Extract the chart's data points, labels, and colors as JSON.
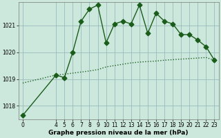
{
  "xlabel": "Graphe pression niveau de la mer (hPa)",
  "bg_color": "#cce8dd",
  "grid_color": "#99bbbb",
  "line_color": "#1a5c1a",
  "ylim": [
    1017.5,
    1021.85
  ],
  "xlim": [
    -0.5,
    23.5
  ],
  "yticks": [
    1018,
    1019,
    1020,
    1021
  ],
  "xticks": [
    0,
    4,
    5,
    6,
    7,
    8,
    9,
    10,
    11,
    12,
    13,
    14,
    15,
    16,
    17,
    18,
    19,
    20,
    21,
    22,
    23
  ],
  "jagged_x": [
    0,
    4,
    5,
    6,
    7,
    8,
    9,
    10,
    11,
    12,
    13,
    14,
    15,
    16,
    17,
    18,
    19,
    20,
    21,
    22,
    23
  ],
  "jagged_y": [
    1017.65,
    1019.15,
    1019.05,
    1020.0,
    1021.15,
    1021.6,
    1021.75,
    1020.35,
    1021.05,
    1021.15,
    1021.05,
    1021.75,
    1020.7,
    1021.45,
    1021.15,
    1021.05,
    1020.65,
    1020.65,
    1020.45,
    1020.2,
    1019.7
  ],
  "trend_x": [
    0,
    4,
    5,
    6,
    7,
    8,
    9,
    10,
    11,
    12,
    13,
    14,
    15,
    16,
    17,
    18,
    19,
    20,
    21,
    22,
    23
  ],
  "trend_y": [
    1018.85,
    1019.15,
    1019.18,
    1019.22,
    1019.26,
    1019.3,
    1019.35,
    1019.45,
    1019.5,
    1019.55,
    1019.6,
    1019.63,
    1019.65,
    1019.67,
    1019.7,
    1019.72,
    1019.74,
    1019.76,
    1019.78,
    1019.8,
    1019.7
  ],
  "marker_size": 3.5,
  "linewidth": 1.0,
  "tick_fontsize": 5.5,
  "label_fontsize": 6.5
}
